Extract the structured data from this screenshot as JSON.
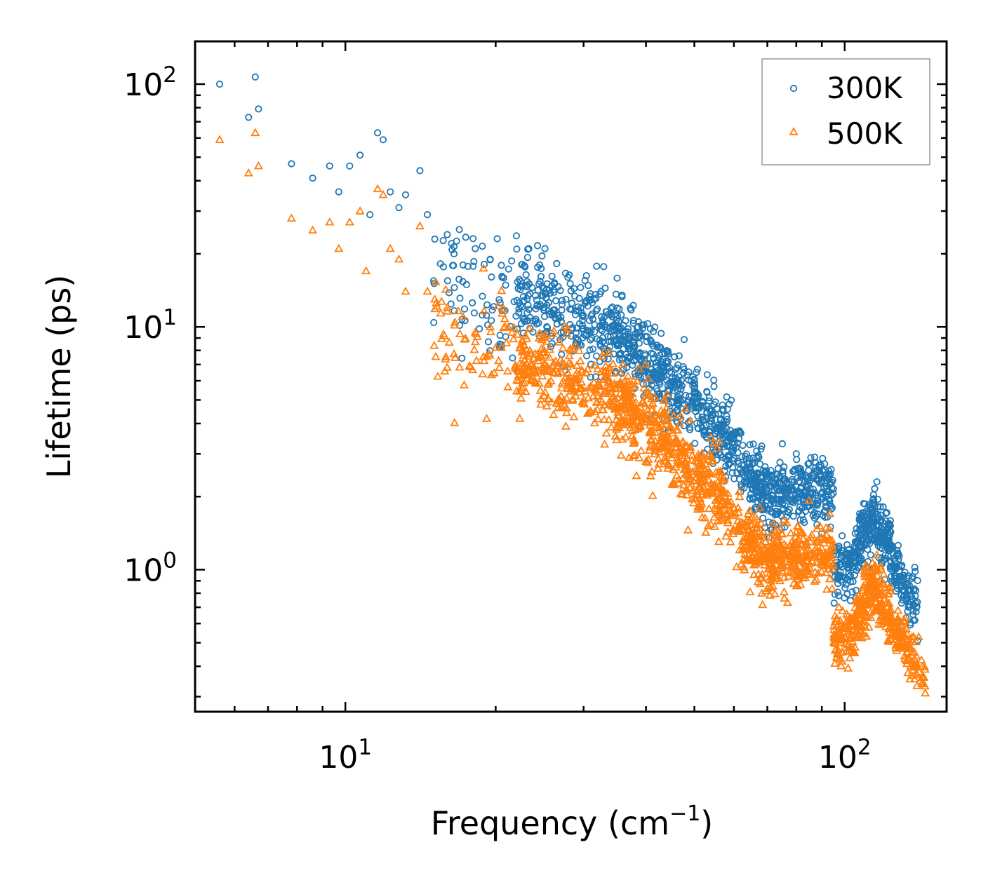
{
  "chart_data": {
    "type": "scatter",
    "xscale": "log",
    "yscale": "log",
    "xlabel": "Frequency (cm",
    "xlabel_superscript": "−1",
    "xlabel_suffix": ")",
    "ylabel": "Lifetime (ps)",
    "xlim": [
      5,
      160
    ],
    "ylim": [
      0.26,
      150
    ],
    "xticks": [
      {
        "value": 10,
        "base": "10",
        "exp": "1"
      },
      {
        "value": 100,
        "base": "10",
        "exp": "2"
      }
    ],
    "yticks": [
      {
        "value": 1,
        "base": "10",
        "exp": "0"
      },
      {
        "value": 10,
        "base": "10",
        "exp": "1"
      },
      {
        "value": 100,
        "base": "10",
        "exp": "2"
      }
    ],
    "legend_position": "top-right",
    "series": [
      {
        "name": "300K",
        "marker": "circle",
        "color": "#1f77b4",
        "anchor_points": [
          [
            5.6,
            100
          ],
          [
            6.4,
            73
          ],
          [
            6.6,
            107
          ],
          [
            6.7,
            79
          ],
          [
            7.8,
            47
          ],
          [
            8.6,
            41
          ],
          [
            9.3,
            46
          ],
          [
            9.7,
            36
          ],
          [
            10.2,
            46
          ],
          [
            10.7,
            51
          ],
          [
            11.2,
            29
          ],
          [
            11.6,
            63
          ],
          [
            11.9,
            59
          ],
          [
            12.3,
            36
          ],
          [
            12.8,
            31
          ],
          [
            13.2,
            35
          ],
          [
            14.1,
            44
          ],
          [
            14.6,
            29
          ],
          [
            15.1,
            23
          ],
          [
            16.0,
            24
          ],
          [
            16.5,
            20
          ],
          [
            17.2,
            18
          ],
          [
            18.2,
            21
          ],
          [
            19.5,
            19
          ],
          [
            20.6,
            16
          ],
          [
            23.3,
            21
          ],
          [
            24.5,
            18
          ],
          [
            25.1,
            21
          ],
          [
            27.9,
            16
          ],
          [
            42.9,
            9.4
          ],
          [
            46.6,
            7.6
          ],
          [
            75.0,
            3.3
          ],
          [
            80.0,
            3.0
          ],
          [
            116,
            2.3
          ],
          [
            140,
            0.51
          ]
        ],
        "bands": [
          {
            "from": 15,
            "to": 22,
            "n": 70,
            "ctr": [
              17,
              12.5
            ],
            "sd": 0.26
          },
          {
            "from": 22,
            "to": 34,
            "n": 260,
            "ctr": [
              13.5,
              9.5
            ],
            "sd": 0.18
          },
          {
            "from": 34,
            "to": 45,
            "n": 260,
            "ctr": [
              9.5,
              5.8
            ],
            "sd": 0.16
          },
          {
            "from": 45,
            "to": 62,
            "n": 260,
            "ctr": [
              5.8,
              3.0
            ],
            "sd": 0.15
          },
          {
            "from": 62,
            "to": 72,
            "n": 160,
            "ctr": [
              2.6,
              2.0
            ],
            "sd": 0.14
          },
          {
            "from": 72,
            "to": 95,
            "n": 240,
            "ctr": [
              2.0,
              2.1
            ],
            "sd": 0.13
          },
          {
            "from": 95,
            "to": 105,
            "n": 90,
            "ctr": [
              1.0,
              1.05
            ],
            "sd": 0.12
          },
          {
            "from": 105,
            "to": 114,
            "n": 110,
            "ctr": [
              1.2,
              1.6
            ],
            "sd": 0.12
          },
          {
            "from": 114,
            "to": 124,
            "n": 110,
            "ctr": [
              1.6,
              1.25
            ],
            "sd": 0.12
          },
          {
            "from": 124,
            "to": 140,
            "n": 110,
            "ctr": [
              1.1,
              0.7
            ],
            "sd": 0.11
          }
        ]
      },
      {
        "name": "500K",
        "marker": "triangle",
        "color": "#ff7f0e",
        "anchor_points": [
          [
            5.6,
            59
          ],
          [
            6.4,
            43
          ],
          [
            6.6,
            63
          ],
          [
            6.7,
            46
          ],
          [
            7.8,
            28
          ],
          [
            8.6,
            25
          ],
          [
            9.3,
            27
          ],
          [
            9.7,
            21
          ],
          [
            10.2,
            27
          ],
          [
            10.7,
            30
          ],
          [
            11.0,
            17
          ],
          [
            11.6,
            37
          ],
          [
            11.9,
            35
          ],
          [
            12.3,
            21
          ],
          [
            12.8,
            19
          ],
          [
            13.2,
            14
          ],
          [
            14.1,
            26
          ],
          [
            14.6,
            14
          ],
          [
            15.1,
            13
          ],
          [
            16.0,
            12
          ],
          [
            17.2,
            11
          ],
          [
            18.2,
            9.5
          ],
          [
            19.5,
            10
          ],
          [
            28.9,
            8.4
          ],
          [
            33.0,
            7.9
          ],
          [
            54.0,
            3.5
          ],
          [
            75.0,
            1.4
          ],
          [
            116,
            1.15
          ],
          [
            145,
            0.31
          ]
        ],
        "bands": [
          {
            "from": 15,
            "to": 22,
            "n": 70,
            "ctr": [
              9,
              7
            ],
            "sd": 0.26
          },
          {
            "from": 22,
            "to": 34,
            "n": 260,
            "ctr": [
              7,
              5.2
            ],
            "sd": 0.18
          },
          {
            "from": 34,
            "to": 45,
            "n": 260,
            "ctr": [
              5.2,
              3.2
            ],
            "sd": 0.16
          },
          {
            "from": 45,
            "to": 62,
            "n": 260,
            "ctr": [
              3.2,
              1.6
            ],
            "sd": 0.16
          },
          {
            "from": 62,
            "to": 72,
            "n": 160,
            "ctr": [
              1.3,
              1.1
            ],
            "sd": 0.14
          },
          {
            "from": 72,
            "to": 95,
            "n": 240,
            "ctr": [
              1.1,
              1.15
            ],
            "sd": 0.13
          },
          {
            "from": 95,
            "to": 105,
            "n": 90,
            "ctr": [
              0.52,
              0.55
            ],
            "sd": 0.12
          },
          {
            "from": 105,
            "to": 114,
            "n": 110,
            "ctr": [
              0.6,
              0.85
            ],
            "sd": 0.12
          },
          {
            "from": 114,
            "to": 124,
            "n": 110,
            "ctr": [
              0.85,
              0.62
            ],
            "sd": 0.12
          },
          {
            "from": 124,
            "to": 145,
            "n": 110,
            "ctr": [
              0.6,
              0.36
            ],
            "sd": 0.11
          }
        ]
      }
    ]
  }
}
